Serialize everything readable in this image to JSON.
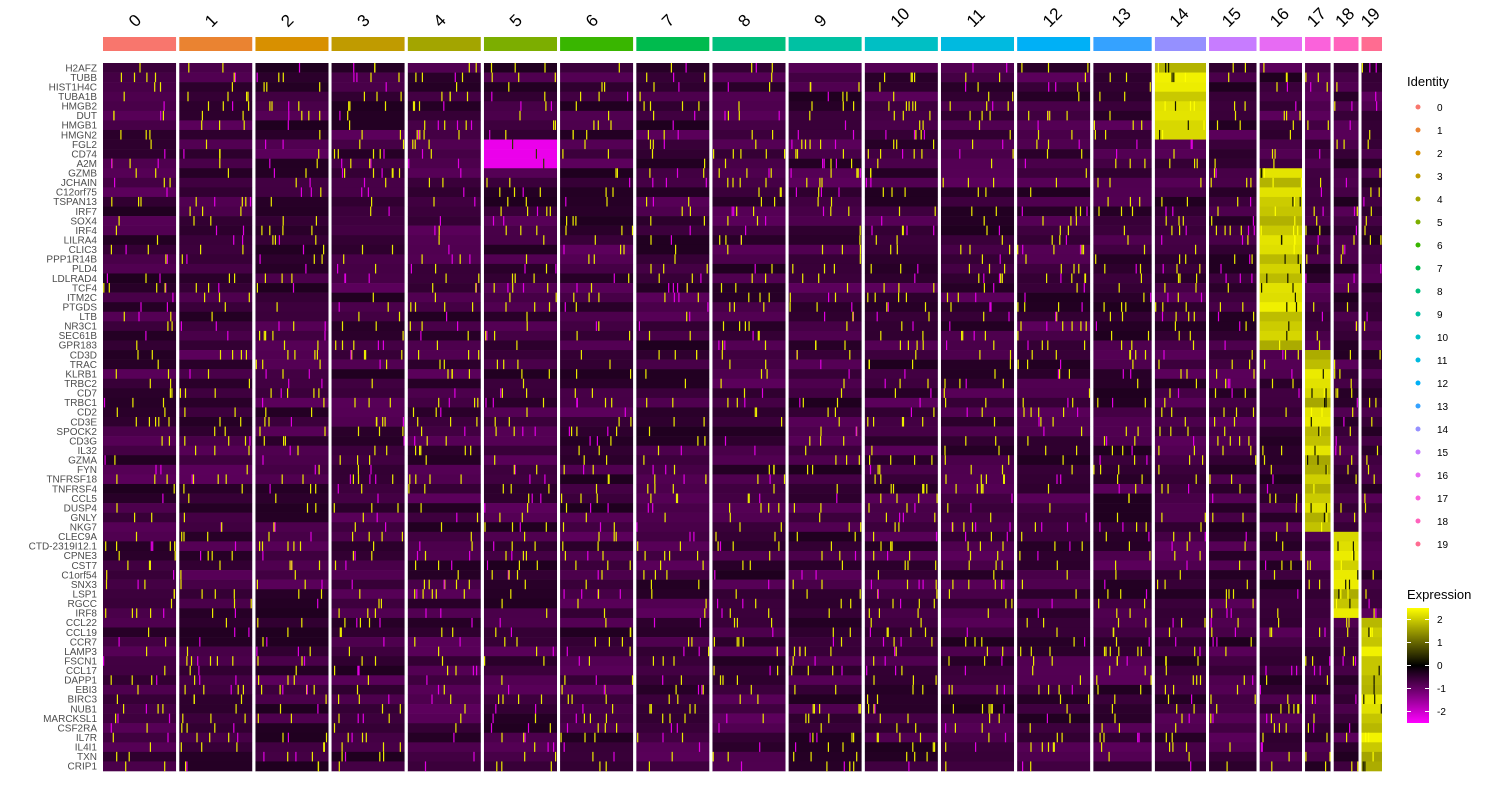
{
  "chart_data": {
    "type": "heatmap",
    "title": "",
    "xlabel": "",
    "ylabel": "",
    "clusters": [
      "0",
      "1",
      "2",
      "3",
      "4",
      "5",
      "6",
      "7",
      "8",
      "9",
      "10",
      "11",
      "12",
      "13",
      "14",
      "15",
      "16",
      "17",
      "18",
      "19"
    ],
    "cluster_colors": [
      "#F8766D",
      "#EA8331",
      "#D89000",
      "#C09B00",
      "#A3A500",
      "#7CAE00",
      "#39B600",
      "#00BB4E",
      "#00BF7D",
      "#00C1A3",
      "#00BFC4",
      "#00BAE0",
      "#00B0F6",
      "#35A2FF",
      "#9590FF",
      "#C77CFF",
      "#E76BF3",
      "#FA62DB",
      "#FF62BC",
      "#FF6C91"
    ],
    "cluster_relative_sizes": [
      100,
      100,
      100,
      100,
      100,
      100,
      100,
      100,
      100,
      100,
      100,
      100,
      100,
      80,
      70,
      65,
      58,
      35,
      34,
      28
    ],
    "genes": [
      "H2AFZ",
      "TUBB",
      "HIST1H4C",
      "TUBA1B",
      "HMGB2",
      "DUT",
      "HMGB1",
      "HMGN2",
      "FGL2",
      "CD74",
      "A2M",
      "GZMB",
      "JCHAIN",
      "C12orf75",
      "TSPAN13",
      "IRF7",
      "SOX4",
      "IRF4",
      "LILRA4",
      "CLIC3",
      "PPP1R14B",
      "PLD4",
      "LDLRAD4",
      "TCF4",
      "ITM2C",
      "PTGDS",
      "LTB",
      "NR3C1",
      "SEC61B",
      "GPR183",
      "CD3D",
      "TRAC",
      "KLRB1",
      "TRBC2",
      "CD7",
      "TRBC1",
      "CD2",
      "CD3E",
      "SPOCK2",
      "CD3G",
      "IL32",
      "GZMA",
      "FYN",
      "TNFRSF18",
      "TNFRSF4",
      "CCL5",
      "DUSP4",
      "GNLY",
      "NKG7",
      "CLEC9A",
      "CTD-2319I12.1",
      "CPNE3",
      "CST7",
      "C1orf54",
      "SNX3",
      "LSP1",
      "RGCC",
      "IRF8",
      "CCL22",
      "CCL19",
      "CCR7",
      "LAMP3",
      "FSCN1",
      "CCL17",
      "DAPP1",
      "EBI3",
      "BIRC3",
      "NUB1",
      "MARCKSL1",
      "CSF2RA",
      "IL7R",
      "IL4I1",
      "TXN",
      "CRIP1"
    ],
    "marker_blocks": [
      {
        "cluster": "14",
        "genes": [
          "H2AFZ",
          "TUBB",
          "HIST1H4C",
          "TUBA1B",
          "HMGB2",
          "DUT",
          "HMGB1",
          "HMGN2"
        ]
      },
      {
        "cluster": "5",
        "genes": [
          "FGL2",
          "CD74",
          "A2M"
        ],
        "note_level": "low"
      },
      {
        "cluster": "16",
        "genes": [
          "GZMB",
          "JCHAIN",
          "C12orf75",
          "TSPAN13",
          "IRF7",
          "SOX4",
          "IRF4",
          "LILRA4",
          "CLIC3",
          "PPP1R14B",
          "PLD4",
          "LDLRAD4",
          "TCF4",
          "ITM2C",
          "PTGDS",
          "LTB",
          "NR3C1",
          "SEC61B",
          "GPR183"
        ]
      },
      {
        "cluster": "17",
        "genes": [
          "CD3D",
          "TRAC",
          "KLRB1",
          "TRBC2",
          "CD7",
          "TRBC1",
          "CD2",
          "CD3E",
          "SPOCK2",
          "CD3G",
          "IL32",
          "GZMA",
          "FYN",
          "TNFRSF18",
          "TNFRSF4",
          "CCL5",
          "DUSP4",
          "GNLY",
          "NKG7"
        ]
      },
      {
        "cluster": "18",
        "genes": [
          "CLEC9A",
          "CTD-2319I12.1",
          "CPNE3",
          "CST7",
          "C1orf54",
          "SNX3",
          "LSP1",
          "RGCC",
          "IRF8"
        ]
      },
      {
        "cluster": "19",
        "genes": [
          "CCL22",
          "CCL19",
          "CCR7",
          "LAMP3",
          "FSCN1",
          "CCL17",
          "DAPP1",
          "EBI3",
          "BIRC3",
          "NUB1",
          "MARCKSL1",
          "CSF2RA",
          "IL7R",
          "IL4I1",
          "TXN",
          "CRIP1"
        ]
      }
    ],
    "legend_identity": {
      "title": "Identity",
      "items": [
        "0",
        "1",
        "2",
        "3",
        "4",
        "5",
        "6",
        "7",
        "8",
        "9",
        "10",
        "11",
        "12",
        "13",
        "14",
        "15",
        "16",
        "17",
        "18",
        "19"
      ]
    },
    "legend_expression": {
      "title": "Expression",
      "ticks": [
        "2",
        "1",
        "0",
        "-1",
        "-2"
      ],
      "range": [
        -2.5,
        2.5
      ],
      "colors": [
        "#FF00FF",
        "#000000",
        "#FFFF00"
      ]
    },
    "legend_placement": "right",
    "grid": false
  }
}
